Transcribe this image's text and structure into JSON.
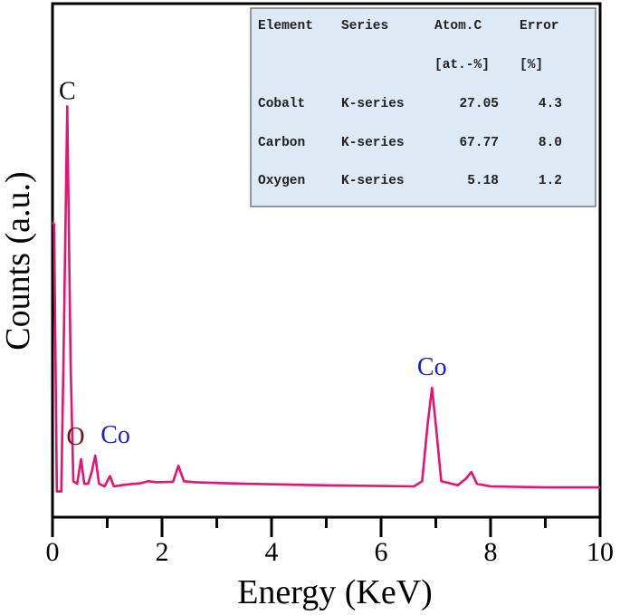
{
  "chart_data": {
    "type": "line",
    "xlabel": "Energy (KeV)",
    "ylabel": "Counts (a.u.)",
    "xlim": [
      0,
      10
    ],
    "ylim": [
      0,
      100
    ],
    "x_ticks": [
      "0",
      "2",
      "4",
      "6",
      "8",
      "10"
    ],
    "x_minor_ticks": [
      1,
      3,
      5,
      7,
      9
    ],
    "y_ticks": [],
    "grid": false,
    "line_color": "#e8126f",
    "series": [
      {
        "x": [
          0,
          0.03,
          0.08,
          0.16,
          0.2,
          0.27,
          0.33,
          0.38,
          0.45,
          0.52,
          0.58,
          0.65,
          0.72,
          0.78,
          0.85,
          0.95,
          1.05,
          1.12,
          1.3,
          1.6,
          1.75,
          1.9,
          2.2,
          2.3,
          2.4,
          2.6,
          3.5,
          5.0,
          6.6,
          6.75,
          6.85,
          6.93,
          7.0,
          7.1,
          7.4,
          7.55,
          7.65,
          7.75,
          8.0,
          9.0,
          10.0
        ],
        "y": [
          57.5,
          57,
          5,
          5,
          30,
          80,
          30,
          7,
          6.5,
          11.3,
          6.5,
          6.5,
          9,
          12,
          6.5,
          6,
          8,
          6,
          6.3,
          6.6,
          7,
          6.8,
          6.9,
          10,
          7,
          6.8,
          6.5,
          6.2,
          6,
          7,
          18,
          25.2,
          18,
          7,
          6.2,
          7.5,
          8.8,
          6.5,
          6,
          5.8,
          5.8
        ]
      }
    ],
    "annotations": [
      {
        "text": "C",
        "x": 0.27,
        "y": 80,
        "color": "#111111"
      },
      {
        "text": "O",
        "x": 0.52,
        "y": 11.3,
        "color": "#7a1414"
      },
      {
        "text": "Co",
        "x": 0.78,
        "y": 12,
        "color": "#1c1cc8"
      },
      {
        "text": "Co",
        "x": 6.93,
        "y": 25.2,
        "color": "#1c1cc8"
      }
    ],
    "inset_table": {
      "header": [
        "Element",
        "Series",
        "Atom.C",
        "Error"
      ],
      "units": [
        "",
        "",
        "[at.-%]",
        "[%]"
      ],
      "rows": [
        [
          "Cobalt",
          "K-series",
          "27.05",
          "4.3"
        ],
        [
          "Carbon",
          "K-series",
          "67.77",
          "8.0"
        ],
        [
          "Oxygen",
          "K-series",
          "5.18",
          "1.2"
        ]
      ],
      "background": "#dde9f5"
    }
  }
}
